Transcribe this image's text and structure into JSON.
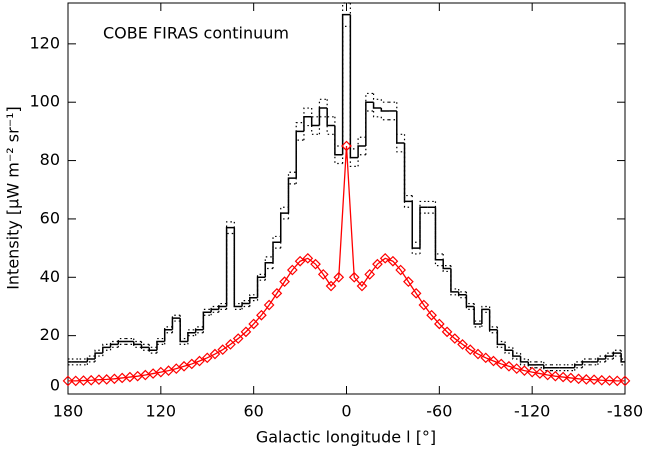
{
  "chart_data": {
    "type": "step_line",
    "annotation": "COBE FIRAS continuum",
    "xlabel": "Galactic longitude l [°]",
    "ylabel": "Intensity [μW m⁻² sr⁻¹]",
    "x": [
      180,
      175,
      170,
      165,
      160,
      155,
      150,
      145,
      140,
      135,
      130,
      125,
      120,
      115,
      110,
      105,
      100,
      95,
      90,
      85,
      80,
      75,
      70,
      65,
      60,
      55,
      50,
      45,
      40,
      35,
      30,
      25,
      20,
      15,
      10,
      5,
      0,
      -5,
      -10,
      -15,
      -20,
      -25,
      -30,
      -35,
      -40,
      -45,
      -50,
      -55,
      -60,
      -65,
      -70,
      -75,
      -80,
      -85,
      -90,
      -95,
      -100,
      -105,
      -110,
      -115,
      -120,
      -125,
      -130,
      -135,
      -140,
      -145,
      -150,
      -155,
      -160,
      -165,
      -170,
      -175,
      -180
    ],
    "series": [
      {
        "style": "step",
        "color": "#000000",
        "values": [
          11,
          11,
          11,
          12,
          14,
          16,
          17,
          18,
          18,
          17,
          16,
          15,
          18,
          22,
          26,
          18,
          21,
          22,
          28,
          29,
          30,
          57,
          30,
          31,
          33,
          40,
          45,
          52,
          62,
          74,
          90,
          95,
          92,
          98,
          92,
          82,
          130,
          81,
          85,
          100,
          98,
          97,
          97,
          86,
          66,
          50,
          64,
          64,
          46,
          43,
          35,
          34,
          30,
          24,
          29,
          22,
          17,
          15,
          13,
          11,
          10,
          10,
          9,
          9,
          9,
          9,
          10,
          11,
          11,
          12,
          13,
          14,
          11
        ],
        "errors": [
          1,
          1,
          1,
          1,
          1,
          1,
          1,
          1,
          1,
          1,
          1,
          1,
          1,
          1,
          1,
          1,
          1,
          1,
          1,
          1,
          1,
          2,
          1,
          1,
          1,
          1,
          2,
          2,
          2,
          2,
          3,
          3,
          3,
          3,
          3,
          3,
          4,
          3,
          3,
          3,
          3,
          3,
          3,
          3,
          2,
          2,
          2,
          2,
          2,
          1,
          1,
          1,
          1,
          1,
          1,
          1,
          1,
          1,
          1,
          1,
          1,
          1,
          1,
          1,
          1,
          1,
          1,
          1,
          1,
          1,
          1,
          1,
          1
        ]
      },
      {
        "style": "diamond_line",
        "color": "#ff0000",
        "values": [
          4.5,
          4.5,
          4.6,
          4.7,
          4.9,
          5,
          5.2,
          5.5,
          5.8,
          6.1,
          6.5,
          7,
          7.5,
          8,
          8.7,
          9.5,
          10.3,
          11.3,
          12.4,
          13.7,
          15.2,
          17,
          19,
          21.3,
          24,
          27,
          30.5,
          34.5,
          38.5,
          42.5,
          45.5,
          46.5,
          44.5,
          41,
          37,
          40,
          85,
          40,
          37,
          41,
          44.5,
          46.5,
          45.5,
          42.5,
          38.5,
          34.5,
          30.5,
          27,
          24,
          21.3,
          19,
          17,
          15.2,
          13.7,
          12.4,
          11.3,
          10.3,
          9.5,
          8.7,
          8,
          7.5,
          7,
          6.5,
          6.1,
          5.8,
          5.5,
          5.2,
          5,
          4.9,
          4.7,
          4.6,
          4.5,
          4.5
        ]
      }
    ],
    "xlim": [
      180,
      -180
    ],
    "xticks": [
      180,
      120,
      60,
      0,
      -60,
      -120,
      -180
    ],
    "ylim": [
      0,
      134
    ],
    "yticks": [
      0,
      20,
      40,
      60,
      80,
      100,
      120
    ]
  }
}
